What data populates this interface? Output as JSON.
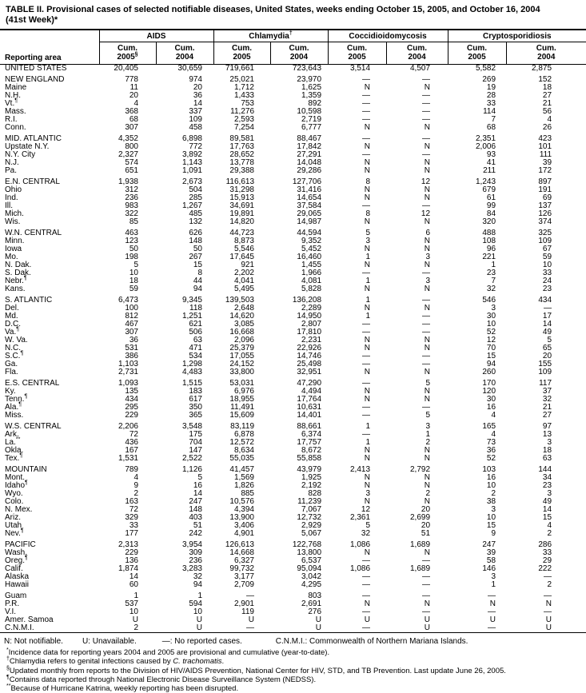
{
  "title": {
    "line1": "TABLE II. Provisional cases of selected notifiable diseases, United States, weeks ending October 15, 2005, and October 16, 2004",
    "line2": "(41st Week)*"
  },
  "table": {
    "reporting_area_label": "Reporting area",
    "groups": [
      {
        "name": "AIDS",
        "sup": ""
      },
      {
        "name": "Chlamydia",
        "sup": "†"
      },
      {
        "name": "Coccidioidomycosis",
        "sup": ""
      },
      {
        "name": "Cryptosporidiosis",
        "sup": ""
      }
    ],
    "subheaders": [
      {
        "l1": "Cum.",
        "l2": "2005",
        "sup": "§"
      },
      {
        "l1": "Cum.",
        "l2": "2004",
        "sup": ""
      },
      {
        "l1": "Cum.",
        "l2": "2005",
        "sup": ""
      },
      {
        "l1": "Cum.",
        "l2": "2004",
        "sup": ""
      },
      {
        "l1": "Cum.",
        "l2": "2005",
        "sup": ""
      },
      {
        "l1": "Cum.",
        "l2": "2004",
        "sup": ""
      },
      {
        "l1": "Cum.",
        "l2": "2005",
        "sup": ""
      },
      {
        "l1": "Cum.",
        "l2": "2004",
        "sup": ""
      }
    ],
    "rows": [
      {
        "area": "UNITED STATES",
        "sup": "",
        "gap": false,
        "v": [
          "20,405",
          "30,659",
          "719,661",
          "723,643",
          "3,514",
          "4,507",
          "5,582",
          "2,875"
        ]
      },
      {
        "area": "NEW ENGLAND",
        "sup": "",
        "gap": true,
        "v": [
          "778",
          "974",
          "25,021",
          "23,970",
          "—",
          "—",
          "269",
          "152"
        ]
      },
      {
        "area": "Maine",
        "sup": "",
        "gap": false,
        "v": [
          "11",
          "20",
          "1,712",
          "1,625",
          "N",
          "N",
          "19",
          "18"
        ]
      },
      {
        "area": "N.H.",
        "sup": "",
        "gap": false,
        "v": [
          "20",
          "36",
          "1,433",
          "1,359",
          "—",
          "—",
          "28",
          "27"
        ]
      },
      {
        "area": "Vt.",
        "sup": "¶",
        "gap": false,
        "v": [
          "4",
          "14",
          "753",
          "892",
          "—",
          "—",
          "33",
          "21"
        ]
      },
      {
        "area": "Mass.",
        "sup": "",
        "gap": false,
        "v": [
          "368",
          "337",
          "11,276",
          "10,598",
          "—",
          "—",
          "114",
          "56"
        ]
      },
      {
        "area": "R.I.",
        "sup": "",
        "gap": false,
        "v": [
          "68",
          "109",
          "2,593",
          "2,719",
          "—",
          "—",
          "7",
          "4"
        ]
      },
      {
        "area": "Conn.",
        "sup": "",
        "gap": false,
        "v": [
          "307",
          "458",
          "7,254",
          "6,777",
          "N",
          "N",
          "68",
          "26"
        ]
      },
      {
        "area": "MID. ATLANTIC",
        "sup": "",
        "gap": true,
        "v": [
          "4,352",
          "6,898",
          "89,581",
          "88,467",
          "—",
          "—",
          "2,351",
          "423"
        ]
      },
      {
        "area": "Upstate N.Y.",
        "sup": "",
        "gap": false,
        "v": [
          "800",
          "772",
          "17,763",
          "17,842",
          "N",
          "N",
          "2,006",
          "101"
        ]
      },
      {
        "area": "N.Y. City",
        "sup": "",
        "gap": false,
        "v": [
          "2,327",
          "3,892",
          "28,652",
          "27,291",
          "—",
          "—",
          "93",
          "111"
        ]
      },
      {
        "area": "N.J.",
        "sup": "",
        "gap": false,
        "v": [
          "574",
          "1,143",
          "13,778",
          "14,048",
          "N",
          "N",
          "41",
          "39"
        ]
      },
      {
        "area": "Pa.",
        "sup": "",
        "gap": false,
        "v": [
          "651",
          "1,091",
          "29,388",
          "29,286",
          "N",
          "N",
          "211",
          "172"
        ]
      },
      {
        "area": "E.N. CENTRAL",
        "sup": "",
        "gap": true,
        "v": [
          "1,938",
          "2,673",
          "116,613",
          "127,706",
          "8",
          "12",
          "1,243",
          "897"
        ]
      },
      {
        "area": "Ohio",
        "sup": "",
        "gap": false,
        "v": [
          "312",
          "504",
          "31,298",
          "31,416",
          "N",
          "N",
          "679",
          "191"
        ]
      },
      {
        "area": "Ind.",
        "sup": "",
        "gap": false,
        "v": [
          "236",
          "285",
          "15,913",
          "14,654",
          "N",
          "N",
          "61",
          "69"
        ]
      },
      {
        "area": "Ill.",
        "sup": "",
        "gap": false,
        "v": [
          "983",
          "1,267",
          "34,691",
          "37,584",
          "—",
          "—",
          "99",
          "137"
        ]
      },
      {
        "area": "Mich.",
        "sup": "",
        "gap": false,
        "v": [
          "322",
          "485",
          "19,891",
          "29,065",
          "8",
          "12",
          "84",
          "126"
        ]
      },
      {
        "area": "Wis.",
        "sup": "",
        "gap": false,
        "v": [
          "85",
          "132",
          "14,820",
          "14,987",
          "N",
          "N",
          "320",
          "374"
        ]
      },
      {
        "area": "W.N. CENTRAL",
        "sup": "",
        "gap": true,
        "v": [
          "463",
          "626",
          "44,723",
          "44,594",
          "5",
          "6",
          "488",
          "325"
        ]
      },
      {
        "area": "Minn.",
        "sup": "",
        "gap": false,
        "v": [
          "123",
          "148",
          "8,873",
          "9,352",
          "3",
          "N",
          "108",
          "109"
        ]
      },
      {
        "area": "Iowa",
        "sup": "",
        "gap": false,
        "v": [
          "50",
          "50",
          "5,546",
          "5,452",
          "N",
          "N",
          "96",
          "67"
        ]
      },
      {
        "area": "Mo.",
        "sup": "",
        "gap": false,
        "v": [
          "198",
          "267",
          "17,645",
          "16,460",
          "1",
          "3",
          "221",
          "59"
        ]
      },
      {
        "area": "N. Dak.",
        "sup": "",
        "gap": false,
        "v": [
          "5",
          "15",
          "921",
          "1,455",
          "N",
          "N",
          "1",
          "10"
        ]
      },
      {
        "area": "S. Dak.",
        "sup": "",
        "gap": false,
        "v": [
          "10",
          "8",
          "2,202",
          "1,966",
          "—",
          "—",
          "23",
          "33"
        ]
      },
      {
        "area": "Nebr.",
        "sup": "¶",
        "gap": false,
        "v": [
          "18",
          "44",
          "4,041",
          "4,081",
          "1",
          "3",
          "7",
          "24"
        ]
      },
      {
        "area": "Kans.",
        "sup": "",
        "gap": false,
        "v": [
          "59",
          "94",
          "5,495",
          "5,828",
          "N",
          "N",
          "32",
          "23"
        ]
      },
      {
        "area": "S. ATLANTIC",
        "sup": "",
        "gap": true,
        "v": [
          "6,473",
          "9,345",
          "139,503",
          "136,208",
          "1",
          "—",
          "546",
          "434"
        ]
      },
      {
        "area": "Del.",
        "sup": "",
        "gap": false,
        "v": [
          "100",
          "118",
          "2,648",
          "2,289",
          "N",
          "N",
          "3",
          "—"
        ]
      },
      {
        "area": "Md.",
        "sup": "",
        "gap": false,
        "v": [
          "812",
          "1,251",
          "14,620",
          "14,950",
          "1",
          "—",
          "30",
          "17"
        ]
      },
      {
        "area": "D.C.",
        "sup": "",
        "gap": false,
        "v": [
          "467",
          "621",
          "3,085",
          "2,807",
          "—",
          "—",
          "10",
          "14"
        ]
      },
      {
        "area": "Va.",
        "sup": "¶",
        "gap": false,
        "v": [
          "307",
          "506",
          "16,668",
          "17,810",
          "—",
          "—",
          "52",
          "49"
        ]
      },
      {
        "area": "W. Va.",
        "sup": "",
        "gap": false,
        "v": [
          "36",
          "63",
          "2,096",
          "2,231",
          "N",
          "N",
          "12",
          "5"
        ]
      },
      {
        "area": "N.C.",
        "sup": "",
        "gap": false,
        "v": [
          "531",
          "471",
          "25,379",
          "22,926",
          "N",
          "N",
          "70",
          "65"
        ]
      },
      {
        "area": "S.C.",
        "sup": "¶",
        "gap": false,
        "v": [
          "386",
          "534",
          "17,055",
          "14,746",
          "—",
          "—",
          "15",
          "20"
        ]
      },
      {
        "area": "Ga.",
        "sup": "",
        "gap": false,
        "v": [
          "1,103",
          "1,298",
          "24,152",
          "25,498",
          "—",
          "—",
          "94",
          "155"
        ]
      },
      {
        "area": "Fla.",
        "sup": "",
        "gap": false,
        "v": [
          "2,731",
          "4,483",
          "33,800",
          "32,951",
          "N",
          "N",
          "260",
          "109"
        ]
      },
      {
        "area": "E.S. CENTRAL",
        "sup": "",
        "gap": true,
        "v": [
          "1,093",
          "1,515",
          "53,031",
          "47,290",
          "—",
          "5",
          "170",
          "117"
        ]
      },
      {
        "area": "Ky.",
        "sup": "",
        "gap": false,
        "v": [
          "135",
          "183",
          "6,976",
          "4,494",
          "N",
          "N",
          "120",
          "37"
        ]
      },
      {
        "area": "Tenn.",
        "sup": "¶",
        "gap": false,
        "v": [
          "434",
          "617",
          "18,955",
          "17,764",
          "N",
          "N",
          "30",
          "32"
        ]
      },
      {
        "area": "Ala.",
        "sup": "¶",
        "gap": false,
        "v": [
          "295",
          "350",
          "11,491",
          "10,631",
          "—",
          "—",
          "16",
          "21"
        ]
      },
      {
        "area": "Miss.",
        "sup": "",
        "gap": false,
        "v": [
          "229",
          "365",
          "15,609",
          "14,401",
          "—",
          "5",
          "4",
          "27"
        ]
      },
      {
        "area": "W.S. CENTRAL",
        "sup": "",
        "gap": true,
        "v": [
          "2,206",
          "3,548",
          "83,119",
          "88,661",
          "1",
          "3",
          "165",
          "97"
        ]
      },
      {
        "area": "Ark.",
        "sup": "",
        "gap": false,
        "v": [
          "72",
          "175",
          "6,878",
          "6,374",
          "—",
          "1",
          "4",
          "13"
        ]
      },
      {
        "area": "La.",
        "sup": "**",
        "gap": false,
        "v": [
          "436",
          "704",
          "12,572",
          "17,757",
          "1",
          "2",
          "73",
          "3"
        ]
      },
      {
        "area": "Okla.",
        "sup": "",
        "gap": false,
        "v": [
          "167",
          "147",
          "8,634",
          "8,672",
          "N",
          "N",
          "36",
          "18"
        ]
      },
      {
        "area": "Tex.",
        "sup": "¶",
        "gap": false,
        "v": [
          "1,531",
          "2,522",
          "55,035",
          "55,858",
          "N",
          "N",
          "52",
          "63"
        ]
      },
      {
        "area": "MOUNTAIN",
        "sup": "",
        "gap": true,
        "v": [
          "789",
          "1,126",
          "41,457",
          "43,979",
          "2,413",
          "2,792",
          "103",
          "144"
        ]
      },
      {
        "area": "Mont.",
        "sup": "",
        "gap": false,
        "v": [
          "4",
          "5",
          "1,569",
          "1,925",
          "N",
          "N",
          "16",
          "34"
        ]
      },
      {
        "area": "Idaho",
        "sup": "¶",
        "gap": false,
        "v": [
          "9",
          "16",
          "1,826",
          "2,192",
          "N",
          "N",
          "10",
          "23"
        ]
      },
      {
        "area": "Wyo.",
        "sup": "",
        "gap": false,
        "v": [
          "2",
          "14",
          "885",
          "828",
          "3",
          "2",
          "2",
          "3"
        ]
      },
      {
        "area": "Colo.",
        "sup": "",
        "gap": false,
        "v": [
          "163",
          "247",
          "10,576",
          "11,239",
          "N",
          "N",
          "38",
          "49"
        ]
      },
      {
        "area": "N. Mex.",
        "sup": "",
        "gap": false,
        "v": [
          "72",
          "148",
          "4,394",
          "7,067",
          "12",
          "20",
          "3",
          "14"
        ]
      },
      {
        "area": "Ariz.",
        "sup": "",
        "gap": false,
        "v": [
          "329",
          "403",
          "13,900",
          "12,732",
          "2,361",
          "2,699",
          "10",
          "15"
        ]
      },
      {
        "area": "Utah",
        "sup": "",
        "gap": false,
        "v": [
          "33",
          "51",
          "3,406",
          "2,929",
          "5",
          "20",
          "15",
          "4"
        ]
      },
      {
        "area": "Nev.",
        "sup": "¶",
        "gap": false,
        "v": [
          "177",
          "242",
          "4,901",
          "5,067",
          "32",
          "51",
          "9",
          "2"
        ]
      },
      {
        "area": "PACIFIC",
        "sup": "",
        "gap": true,
        "v": [
          "2,313",
          "3,954",
          "126,613",
          "122,768",
          "1,086",
          "1,689",
          "247",
          "286"
        ]
      },
      {
        "area": "Wash.",
        "sup": "",
        "gap": false,
        "v": [
          "229",
          "309",
          "14,668",
          "13,800",
          "N",
          "N",
          "39",
          "33"
        ]
      },
      {
        "area": "Oreg.",
        "sup": "¶",
        "gap": false,
        "v": [
          "136",
          "236",
          "6,327",
          "6,537",
          "—",
          "—",
          "58",
          "29"
        ]
      },
      {
        "area": "Calif.",
        "sup": "",
        "gap": false,
        "v": [
          "1,874",
          "3,283",
          "99,732",
          "95,094",
          "1,086",
          "1,689",
          "146",
          "222"
        ]
      },
      {
        "area": "Alaska",
        "sup": "",
        "gap": false,
        "v": [
          "14",
          "32",
          "3,177",
          "3,042",
          "—",
          "—",
          "3",
          "—"
        ]
      },
      {
        "area": "Hawaii",
        "sup": "",
        "gap": false,
        "v": [
          "60",
          "94",
          "2,709",
          "4,295",
          "—",
          "—",
          "1",
          "2"
        ]
      },
      {
        "area": "Guam",
        "sup": "",
        "gap": true,
        "v": [
          "1",
          "1",
          "—",
          "803",
          "—",
          "—",
          "—",
          "—"
        ]
      },
      {
        "area": "P.R.",
        "sup": "",
        "gap": false,
        "v": [
          "537",
          "594",
          "2,901",
          "2,691",
          "N",
          "N",
          "N",
          "N"
        ]
      },
      {
        "area": "V.I.",
        "sup": "",
        "gap": false,
        "v": [
          "10",
          "10",
          "119",
          "276",
          "—",
          "—",
          "—",
          "—"
        ]
      },
      {
        "area": "Amer. Samoa",
        "sup": "",
        "gap": false,
        "v": [
          "U",
          "U",
          "U",
          "U",
          "U",
          "U",
          "U",
          "U"
        ]
      },
      {
        "area": "C.N.M.I.",
        "sup": "",
        "gap": false,
        "v": [
          "2",
          "U",
          "—",
          "U",
          "—",
          "U",
          "—",
          "U"
        ]
      }
    ]
  },
  "legend": [
    "N: Not notifiable.",
    "U: Unavailable.",
    "—: No reported cases.",
    "C.N.M.I.: Commonwealth of Northern Mariana Islands."
  ],
  "footnotes": [
    {
      "marker": "*",
      "segments": [
        {
          "text": "Incidence data for reporting years 2004 and 2005 are provisional and cumulative (year-to-date).",
          "italic": false
        }
      ]
    },
    {
      "marker": "†",
      "segments": [
        {
          "text": "Chlamydia refers to genital infections caused by ",
          "italic": false
        },
        {
          "text": "C. trachomatis",
          "italic": true
        },
        {
          "text": ".",
          "italic": false
        }
      ]
    },
    {
      "marker": "§",
      "segments": [
        {
          "text": "Updated monthly from reports to the Division of HIV/AIDS Prevention, National Center for HIV, STD, and TB Prevention. Last update June 26, 2005.",
          "italic": false
        }
      ]
    },
    {
      "marker": "¶",
      "segments": [
        {
          "text": "Contains data reported through National Electronic Disease Surveillance System (NEDSS).",
          "italic": false
        }
      ]
    },
    {
      "marker": "**",
      "segments": [
        {
          "text": "Because of Hurricane Katrina, weekly reporting has been disrupted.",
          "italic": false
        }
      ]
    }
  ]
}
